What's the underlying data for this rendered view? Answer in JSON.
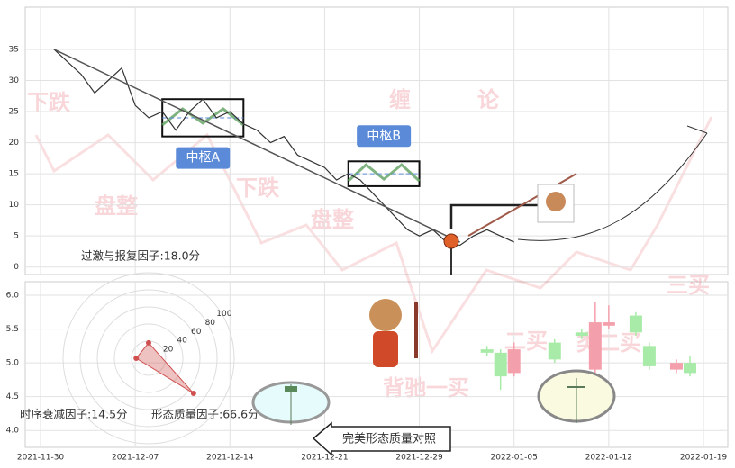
{
  "chart_data": [
    {
      "type": "line",
      "x": [
        "2021-12-01",
        "2021-12-02",
        "2021-12-03",
        "2021-12-04",
        "2021-12-05",
        "2021-12-06",
        "2021-12-07",
        "2021-12-08",
        "2021-12-09",
        "2021-12-10",
        "2021-12-11",
        "2021-12-12",
        "2021-12-13",
        "2021-12-14",
        "2021-12-15",
        "2021-12-16",
        "2021-12-17",
        "2021-12-18",
        "2021-12-19",
        "2021-12-20",
        "2021-12-21",
        "2021-12-22",
        "2021-12-23",
        "2021-12-24",
        "2021-12-25",
        "2021-12-26",
        "2021-12-27",
        "2021-12-28",
        "2021-12-29",
        "2021-12-30",
        "2021-12-31",
        "2022-01-01",
        "2022-01-02",
        "2022-01-03",
        "2022-01-04",
        "2022-01-05"
      ],
      "values": [
        35,
        33,
        31,
        28,
        30,
        32,
        26,
        24,
        25,
        22,
        25,
        27,
        24,
        25,
        23,
        22,
        20,
        21,
        18,
        17,
        16,
        14,
        15,
        14,
        12,
        10,
        8,
        6,
        5,
        6,
        4,
        3.5,
        5,
        6,
        5,
        4
      ],
      "color": "#333333",
      "trendline": {
        "x": [
          "2021-12-01",
          "2022-01-01"
        ],
        "values": [
          35,
          4
        ],
        "color": "#555555"
      },
      "zones": [
        {
          "label": "中枢A",
          "x": [
            "2021-12-09",
            "2021-12-15"
          ],
          "range": [
            21,
            27
          ]
        },
        {
          "label": "中枢B",
          "x": [
            "2021-12-23",
            "2021-12-29"
          ],
          "range": [
            13,
            17
          ]
        }
      ],
      "ylim": [
        -1.2,
        41.8
      ],
      "yticks": [
        0,
        5,
        10,
        15,
        20,
        25,
        30,
        35
      ],
      "grid": true
    },
    {
      "type": "candlestick",
      "x": [
        "2022-01-03",
        "2022-01-04",
        "2022-01-05",
        "2022-01-08",
        "2022-01-10",
        "2022-01-11",
        "2022-01-12",
        "2022-01-14",
        "2022-01-15",
        "2022-01-17",
        "2022-01-18"
      ],
      "open": [
        5.2,
        5.15,
        4.85,
        5.3,
        5.45,
        4.9,
        5.55,
        5.7,
        5.25,
        4.9,
        5.0
      ],
      "high": [
        5.25,
        5.2,
        5.3,
        5.35,
        5.5,
        5.9,
        5.85,
        5.75,
        5.3,
        5.05,
        5.1
      ],
      "low": [
        5.1,
        4.6,
        4.8,
        5.0,
        5.35,
        4.75,
        5.5,
        5.4,
        4.9,
        4.85,
        4.8
      ],
      "close": [
        5.15,
        4.8,
        5.2,
        5.05,
        5.4,
        5.6,
        5.6,
        5.45,
        4.95,
        5.0,
        4.85
      ],
      "up_color": "#f4a0ac",
      "down_color": "#a8eaa8",
      "ylim": [
        3.75,
        6.2
      ],
      "yticks": [
        {
          "value": 4,
          "label": "4.0"
        },
        4.5,
        {
          "value": 5,
          "label": "5.0"
        },
        5.5,
        {
          "value": 6,
          "label": "6.0"
        }
      ],
      "xticks": [
        "2021-11-30",
        "2021-12-07",
        "2021-12-14",
        "2021-12-21",
        "2021-12-29",
        "2022-01-05",
        "2022-01-12",
        "2022-01-19"
      ],
      "grid": true,
      "annotation": "完美形态质量对照"
    },
    {
      "type": "radar",
      "values": [
        18.0,
        14.5,
        66.6
      ],
      "value_labels": [
        "过激与报复因子:18.0分",
        "时序衰减因子:14.5分",
        "形态质量因子:66.6分"
      ],
      "rlim": [
        0,
        100
      ],
      "rticks": [
        20,
        40,
        60,
        80,
        100
      ],
      "color": "#d05050"
    }
  ],
  "watermarks": [
    "下跌",
    "盘整",
    "下跌",
    "盘整",
    "缠",
    "论",
    "背驰一买",
    "二买",
    "类二买",
    "三买"
  ]
}
